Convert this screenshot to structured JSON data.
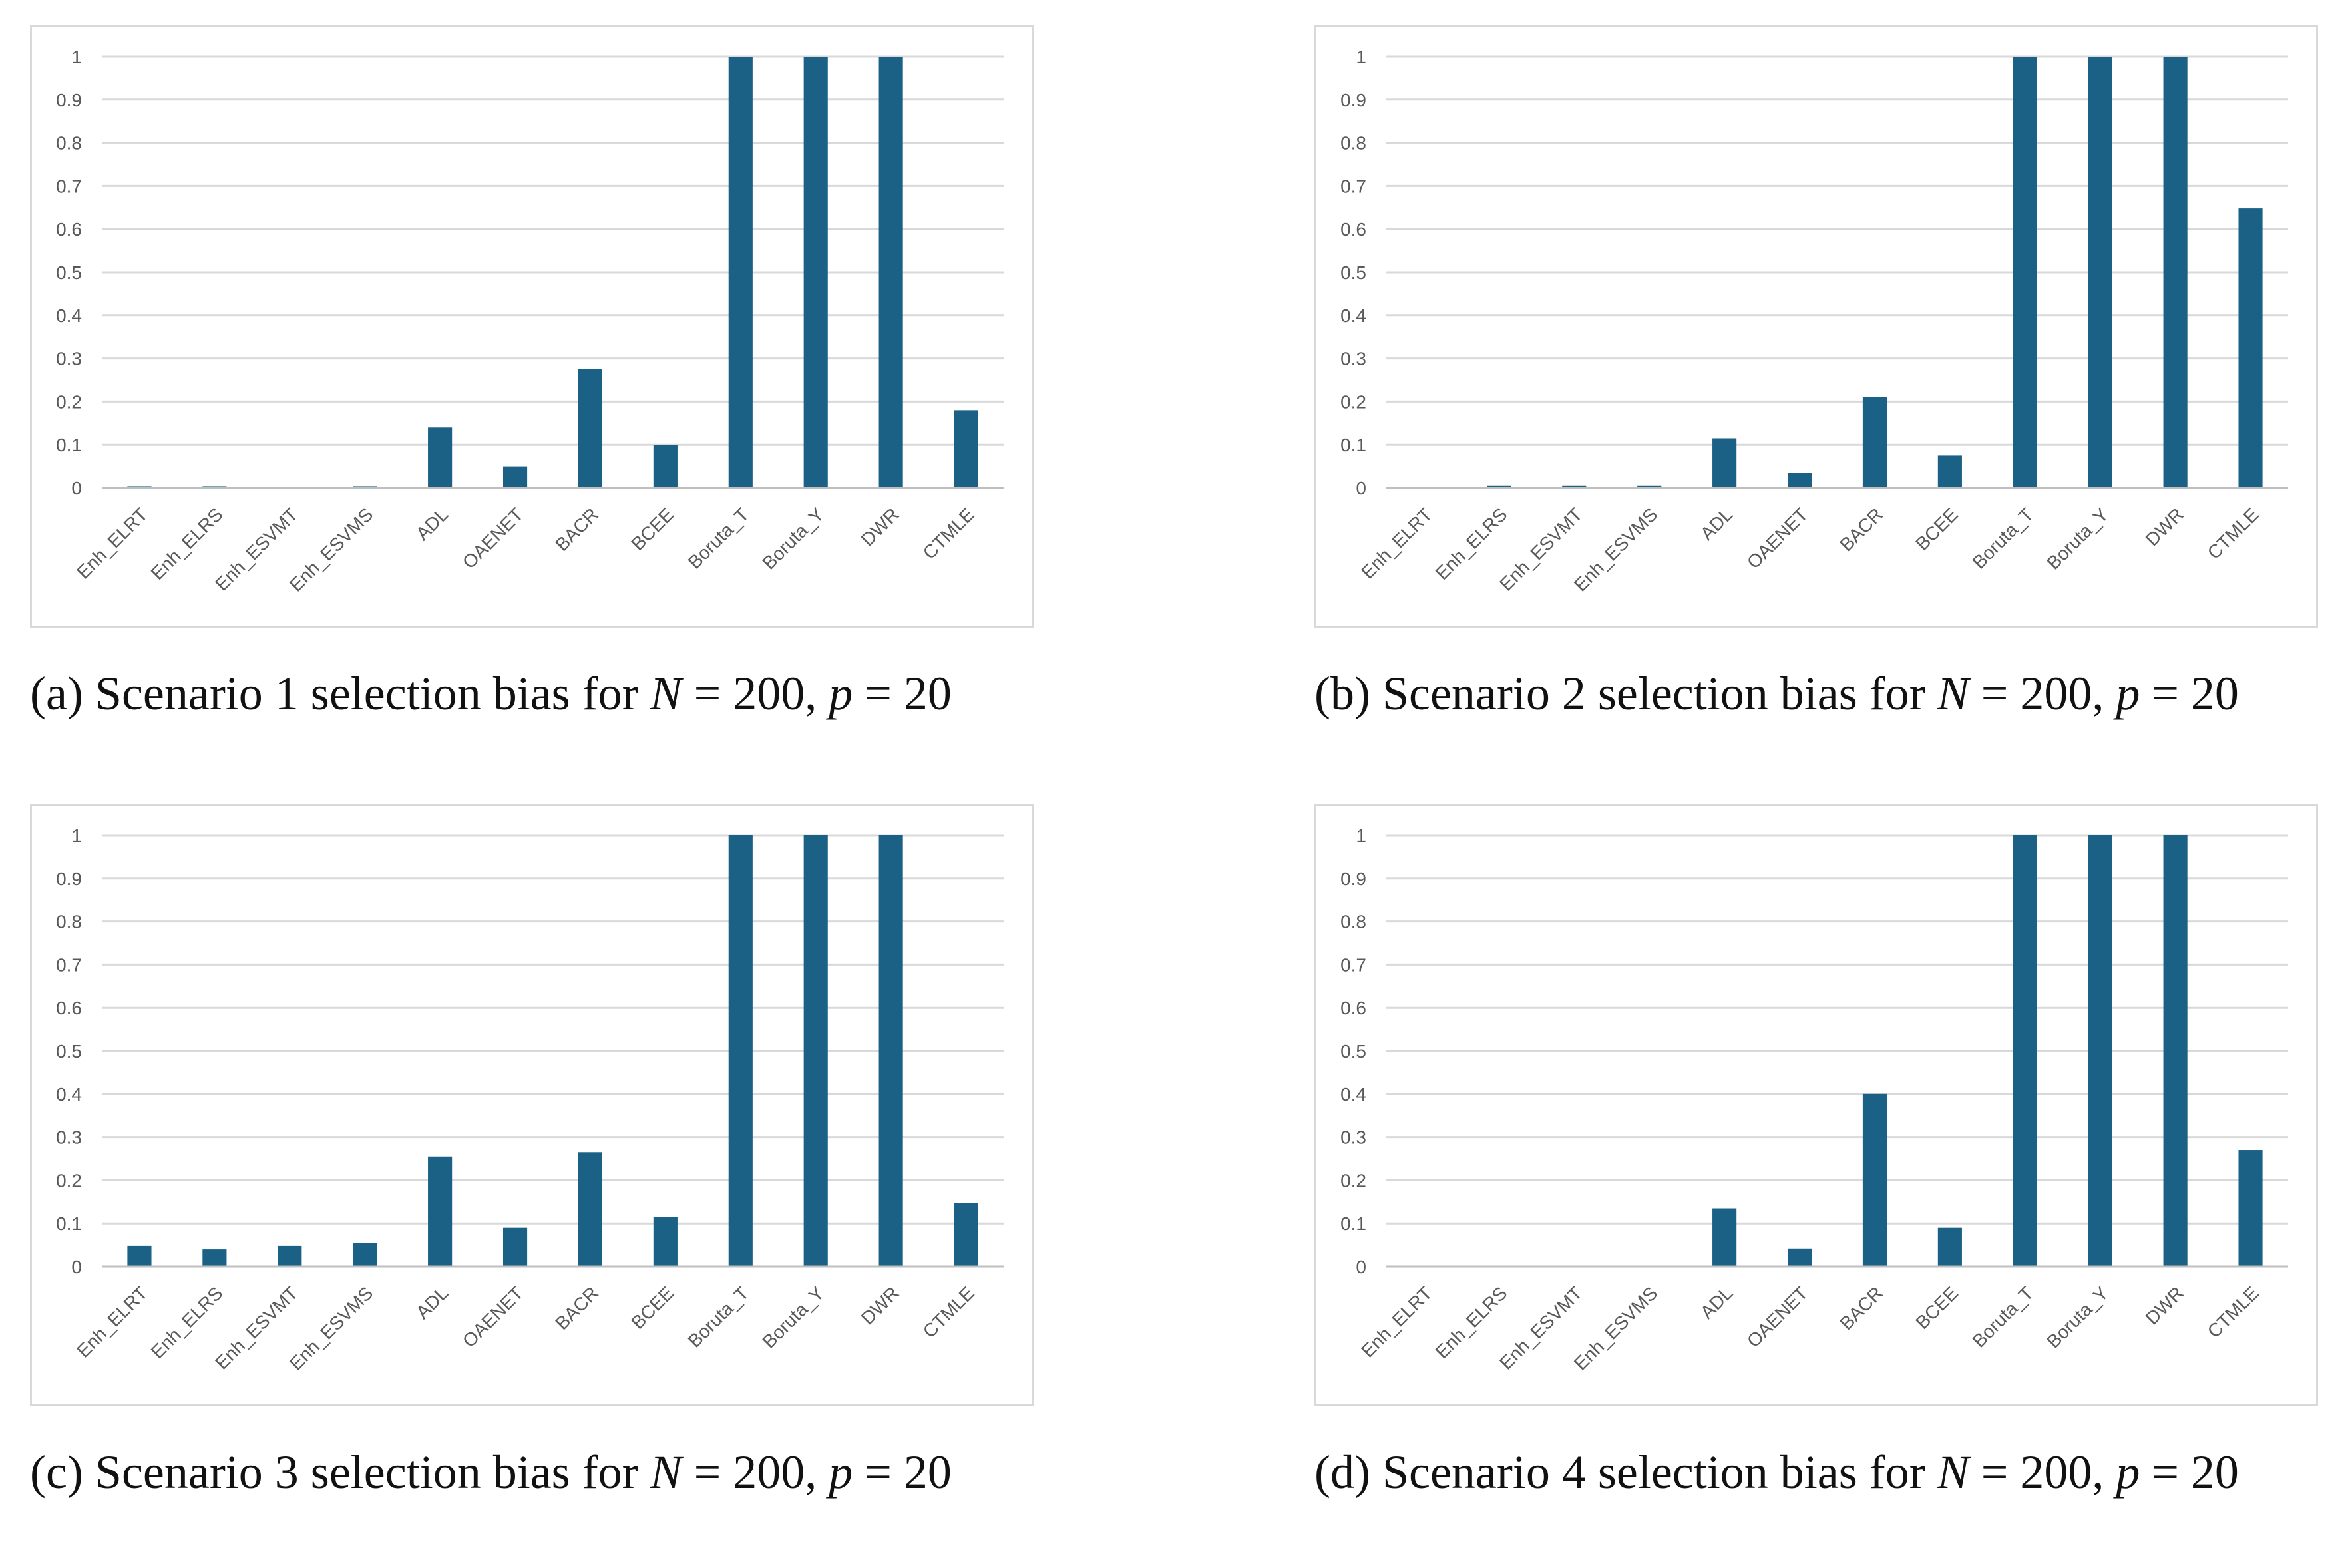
{
  "chart_data": [
    {
      "id": "a",
      "type": "bar",
      "categories": [
        "Enh_ELRT",
        "Enh_ELRS",
        "Enh_ESVMT",
        "Enh_ESVMS",
        "ADL",
        "OAENET",
        "BACR",
        "BCEE",
        "Boruta_T",
        "Boruta_Y",
        "DWR",
        "CTMLE"
      ],
      "values": [
        0.004,
        0.004,
        0.001,
        0.004,
        0.14,
        0.05,
        0.275,
        0.1,
        1,
        1,
        1,
        0.18
      ],
      "ylim": [
        0,
        1
      ],
      "yticks": [
        "0",
        "0.1",
        "0.2",
        "0.3",
        "0.4",
        "0.5",
        "0.6",
        "0.7",
        "0.8",
        "0.9",
        "1"
      ],
      "grid": true,
      "caption": {
        "prefix": "(a) Scenario 1 selection bias for ",
        "N": "N",
        "eq1": " = 200, ",
        "p": "p",
        "eq2": " = 20"
      }
    },
    {
      "id": "b",
      "type": "bar",
      "categories": [
        "Enh_ELRT",
        "Enh_ELRS",
        "Enh_ESVMT",
        "Enh_ESVMS",
        "ADL",
        "OAENET",
        "BACR",
        "BCEE",
        "Boruta_T",
        "Boruta_Y",
        "DWR",
        "CTMLE"
      ],
      "values": [
        0.002,
        0.005,
        0.005,
        0.005,
        0.115,
        0.035,
        0.21,
        0.075,
        1,
        1,
        1,
        0.648
      ],
      "ylim": [
        0,
        1
      ],
      "yticks": [
        "0",
        "0.1",
        "0.2",
        "0.3",
        "0.4",
        "0.5",
        "0.6",
        "0.7",
        "0.8",
        "0.9",
        "1"
      ],
      "grid": true,
      "caption": {
        "prefix": "(b) Scenario 2 selection bias for ",
        "N": "N",
        "eq1": " = 200, ",
        "p": "p",
        "eq2": " = 20"
      }
    },
    {
      "id": "c",
      "type": "bar",
      "categories": [
        "Enh_ELRT",
        "Enh_ELRS",
        "Enh_ESVMT",
        "Enh_ESVMS",
        "ADL",
        "OAENET",
        "BACR",
        "BCEE",
        "Boruta_T",
        "Boruta_Y",
        "DWR",
        "CTMLE"
      ],
      "values": [
        0.048,
        0.04,
        0.048,
        0.055,
        0.255,
        0.09,
        0.265,
        0.115,
        1,
        1,
        1,
        0.148
      ],
      "ylim": [
        0,
        1
      ],
      "yticks": [
        "0",
        "0.1",
        "0.2",
        "0.3",
        "0.4",
        "0.5",
        "0.6",
        "0.7",
        "0.8",
        "0.9",
        "1"
      ],
      "grid": true,
      "caption": {
        "prefix": "(c) Scenario 3 selection bias for ",
        "N": "N",
        "eq1": " = 200, ",
        "p": "p",
        "eq2": " = 20"
      }
    },
    {
      "id": "d",
      "type": "bar",
      "categories": [
        "Enh_ELRT",
        "Enh_ELRS",
        "Enh_ESVMT",
        "Enh_ESVMS",
        "ADL",
        "OAENET",
        "BACR",
        "BCEE",
        "Boruta_T",
        "Boruta_Y",
        "DWR",
        "CTMLE"
      ],
      "values": [
        0,
        0.001,
        0,
        0,
        0.135,
        0.042,
        0.4,
        0.09,
        1,
        1,
        1,
        0.27
      ],
      "ylim": [
        0,
        1
      ],
      "yticks": [
        "0",
        "0.1",
        "0.2",
        "0.3",
        "0.4",
        "0.5",
        "0.6",
        "0.7",
        "0.8",
        "0.9",
        "1"
      ],
      "grid": true,
      "caption": {
        "prefix": "(d) Scenario 4 selection bias for ",
        "N": "N",
        "eq1": " = 200, ",
        "p": "p",
        "eq2": " = 20"
      }
    }
  ],
  "colors": {
    "bar": "#1a6185",
    "grid": "#d9d9d9",
    "axis": "#bfbfbf",
    "tick_text": "#595959"
  }
}
